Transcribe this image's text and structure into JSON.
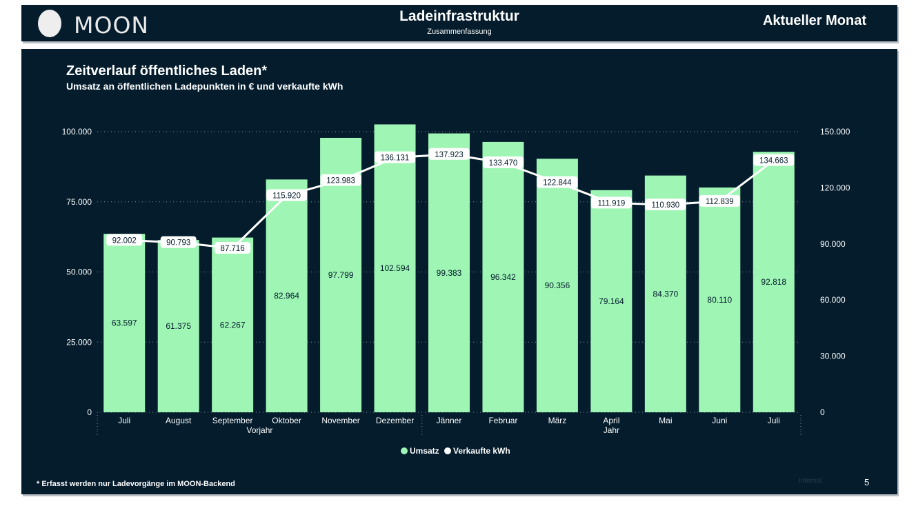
{
  "header": {
    "logo_text": "MOON",
    "title": "Ladeinfrastruktur",
    "subtitle": "Zusammenfassung",
    "right_label": "Aktueller Monat"
  },
  "footer": {
    "footnote": "* Erfasst werden nur Ladevorgänge im MOON-Backend",
    "internal": "Internal",
    "page_number": "5"
  },
  "colors": {
    "background": "#041c2c",
    "bar": "#9ef5b4",
    "line": "#ffffff"
  },
  "chart_data": {
    "type": "bar",
    "title": "Zeitverlauf öffentliches Laden*",
    "subtitle": "Umsatz an öffentlichen Ladepunkten in € und verkaufte kWh",
    "categories": [
      "Juli",
      "August",
      "September",
      "Oktober",
      "November",
      "Dezember",
      "Jänner",
      "Februar",
      "März",
      "April",
      "Mai",
      "Juni",
      "Juli"
    ],
    "groups": [
      {
        "label": "Vorjahr",
        "from": 0,
        "to": 5
      },
      {
        "label": "Jahr",
        "from": 6,
        "to": 12
      }
    ],
    "series": [
      {
        "name": "Umsatz",
        "type": "bar",
        "axis": "left",
        "values": [
          63597,
          61375,
          62267,
          82964,
          97799,
          102594,
          99383,
          96342,
          90356,
          79164,
          84370,
          80110,
          92818
        ],
        "labels": [
          "63.597",
          "61.375",
          "62.267",
          "82.964",
          "97.799",
          "102.594",
          "99.383",
          "96.342",
          "90.356",
          "79.164",
          "84.370",
          "80.110",
          "92.818"
        ]
      },
      {
        "name": "Verkaufte kWh",
        "type": "line",
        "axis": "right",
        "values": [
          92002,
          90793,
          87716,
          115920,
          123983,
          136131,
          137923,
          133470,
          122844,
          111919,
          110930,
          112839,
          134663
        ],
        "labels": [
          "92.002",
          "90.793",
          "87.716",
          "115.920",
          "123.983",
          "136.131",
          "137.923",
          "133.470",
          "122.844",
          "111.919",
          "110.930",
          "112.839",
          "134.663"
        ]
      }
    ],
    "y_left": {
      "min": 0,
      "max": 100000,
      "ticks": [
        0,
        25000,
        50000,
        75000,
        100000
      ],
      "tick_labels": [
        "0",
        "25.000",
        "50.000",
        "75.000",
        "100.000"
      ]
    },
    "y_right": {
      "min": 0,
      "max": 150000,
      "ticks": [
        0,
        30000,
        60000,
        90000,
        120000,
        150000
      ],
      "tick_labels": [
        "0",
        "30.000",
        "60.000",
        "90.000",
        "120.000",
        "150.000"
      ]
    },
    "grid": true,
    "legend_position": "bottom"
  }
}
